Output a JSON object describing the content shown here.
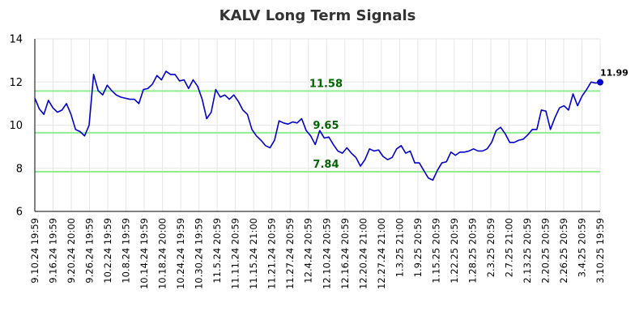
{
  "chart_data": {
    "type": "line",
    "title": "KALV Long Term Signals",
    "xlabel": "",
    "ylabel": "",
    "ylim": [
      6,
      14
    ],
    "yticks": [
      6,
      8,
      10,
      12,
      14
    ],
    "grid": true,
    "x_tick_labels": [
      "9.10.24 19:59",
      "9.16.24 19:59",
      "9.20.24 20:00",
      "9.26.24 19:59",
      "10.2.24 19:59",
      "10.8.24 19:59",
      "10.14.24 19:59",
      "10.18.24 20:00",
      "10.24.24 19:59",
      "10.30.24 19:59",
      "11.5.24 20:59",
      "11.11.24 20:59",
      "11.15.24 21:00",
      "11.21.24 20:59",
      "11.27.24 20:59",
      "12.4.24 20:59",
      "12.10.24 20:59",
      "12.16.24 20:59",
      "12.20.24 21:00",
      "12.27.24 21:00",
      "1.3.25 21:00",
      "1.9.25 20:59",
      "1.15.25 20:59",
      "1.22.25 20:59",
      "1.28.25 20:59",
      "2.3.25 20:59",
      "2.7.25 21:00",
      "2.13.25 20:59",
      "2.20.25 20:59",
      "2.26.25 20:59",
      "3.4.25 20:59",
      "3.10.25 19:59"
    ],
    "series": [
      {
        "color": "#0000cc",
        "values": [
          11.25,
          10.75,
          10.5,
          11.15,
          10.8,
          10.6,
          10.7,
          11.0,
          10.5,
          9.8,
          9.7,
          9.5,
          10.0,
          12.35,
          11.6,
          11.4,
          11.85,
          11.6,
          11.4,
          11.3,
          11.25,
          11.2,
          11.2,
          11.0,
          11.65,
          11.7,
          11.9,
          12.3,
          12.1,
          12.5,
          12.35,
          12.35,
          12.05,
          12.1,
          11.7,
          12.1,
          11.8,
          11.2,
          10.3,
          10.6,
          11.65,
          11.3,
          11.4,
          11.2,
          11.4,
          11.1,
          10.7,
          10.5,
          9.8,
          9.5,
          9.3,
          9.05,
          8.95,
          9.3,
          10.2,
          10.1,
          10.05,
          10.15,
          10.1,
          10.3,
          9.75,
          9.5,
          9.1,
          9.75,
          9.4,
          9.45,
          9.1,
          8.8,
          8.7,
          8.95,
          8.7,
          8.5,
          8.1,
          8.4,
          8.9,
          8.8,
          8.85,
          8.55,
          8.4,
          8.5,
          8.9,
          9.05,
          8.7,
          8.8,
          8.25,
          8.25,
          7.9,
          7.55,
          7.45,
          7.9,
          8.25,
          8.3,
          8.75,
          8.6,
          8.75,
          8.75,
          8.8,
          8.9,
          8.8,
          8.8,
          8.9,
          9.2,
          9.75,
          9.9,
          9.6,
          9.2,
          9.2,
          9.3,
          9.35,
          9.55,
          9.8,
          9.8,
          10.7,
          10.65,
          9.8,
          10.35,
          10.8,
          10.9,
          10.7,
          11.45,
          10.9,
          11.35,
          11.65,
          12.0,
          11.95,
          11.99
        ]
      }
    ],
    "last_value_label": "11.99",
    "signal_lines": [
      {
        "value": 11.58,
        "label": "11.58"
      },
      {
        "value": 9.65,
        "label": "9.65"
      },
      {
        "value": 7.84,
        "label": "7.84"
      }
    ],
    "colors": {
      "line": "#0000cc",
      "signal_line": "#90ee90",
      "signal_label": "#006400",
      "grid": "#e6e6e6",
      "axis": "#000000",
      "title": "#333333"
    }
  }
}
